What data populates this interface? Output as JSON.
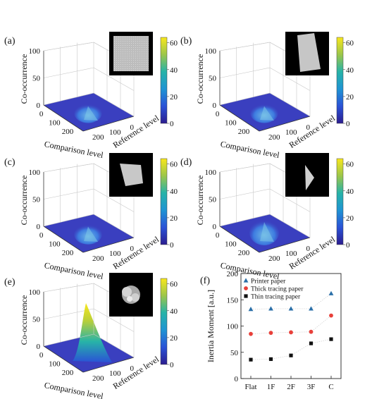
{
  "colors": {
    "floor": "#3a3fbf",
    "peak_low": "#2a52d6",
    "peak_mid": "#27b3a8",
    "peak_high": "#f5d51f",
    "inset_bg": "#000000",
    "paper": "#c9c9c9",
    "axis": "#333333",
    "grid": "#c8c8c8",
    "printer": "#2a6fa8",
    "thick": "#e8403a",
    "thin": "#111111"
  },
  "panels3d": [
    {
      "label": "(a)",
      "zlabel": "Co-occurrence",
      "xlabel": "Comparison level",
      "ylabel": "Reference level",
      "zticks": [
        "0",
        "50",
        "100"
      ],
      "xticks": [
        "0",
        "100",
        "200"
      ],
      "yticks": [
        "200",
        "100",
        "0"
      ],
      "cbar_ticks": [
        "0",
        "20",
        "40",
        "60"
      ],
      "peak_height": 0.15,
      "inset_shape": "flat"
    },
    {
      "label": "(b)",
      "zlabel": "Co-occurrence",
      "xlabel": "Comparison level",
      "ylabel": "Reference level",
      "zticks": [
        "0",
        "50",
        "100"
      ],
      "xticks": [
        "0",
        "100",
        "200"
      ],
      "yticks": [
        "200",
        "100",
        "0"
      ],
      "cbar_ticks": [
        "0",
        "20",
        "40",
        "60"
      ],
      "peak_height": 0.15,
      "inset_shape": "1F"
    },
    {
      "label": "(c)",
      "zlabel": "Co-occurrence",
      "xlabel": "Comparison level",
      "ylabel": "Reference level",
      "zticks": [
        "0",
        "50",
        "100"
      ],
      "xticks": [
        "0",
        "100",
        "200"
      ],
      "yticks": [
        "200",
        "100",
        "0"
      ],
      "cbar_ticks": [
        "0",
        "20",
        "40",
        "60"
      ],
      "peak_height": 0.17,
      "inset_shape": "2F"
    },
    {
      "label": "(d)",
      "zlabel": "Co-occurrence",
      "xlabel": "Comparison level",
      "ylabel": "Reference level",
      "zticks": [
        "0",
        "50",
        "100"
      ],
      "xticks": [
        "0",
        "100",
        "200"
      ],
      "yticks": [
        "200",
        "100",
        "0"
      ],
      "cbar_ticks": [
        "0",
        "20",
        "40",
        "60"
      ],
      "peak_height": 0.3,
      "inset_shape": "3F"
    },
    {
      "label": "(e)",
      "zlabel": "Co-occurrence",
      "xlabel": "Comparison level",
      "ylabel": "Reference level",
      "zticks": [
        "0",
        "50",
        "100"
      ],
      "xticks": [
        "0",
        "100",
        "200"
      ],
      "yticks": [
        "200",
        "100",
        "0"
      ],
      "cbar_ticks": [
        "0",
        "20",
        "40",
        "60"
      ],
      "peak_height": 0.8,
      "inset_shape": "C"
    }
  ],
  "chart_data": {
    "type": "scatter",
    "label": "(f)",
    "xlabel": "",
    "ylabel": "Inertia Moment [a.u.]",
    "categories": [
      "Flat",
      "1F",
      "2F",
      "3F",
      "C"
    ],
    "ylim": [
      0,
      200
    ],
    "yticks": [
      0,
      50,
      100,
      150,
      200
    ],
    "legend_position": "top-left",
    "series": [
      {
        "name": "Printer paper",
        "marker": "triangle",
        "values": [
          132,
          133,
          133,
          133,
          162
        ]
      },
      {
        "name": "Thick tracing paper",
        "marker": "circle",
        "values": [
          85,
          87,
          88,
          89,
          120
        ]
      },
      {
        "name": "Thin tracing paper",
        "marker": "square",
        "values": [
          36,
          37,
          44,
          67,
          75
        ]
      }
    ]
  }
}
